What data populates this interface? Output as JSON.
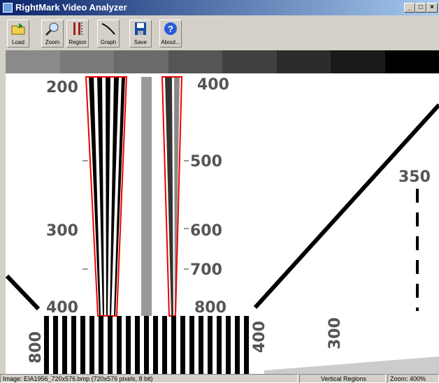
{
  "window": {
    "title": "RightMark Video Analyzer"
  },
  "toolbar": {
    "buttons": [
      "Load",
      "Zoom",
      "Region",
      "Graph",
      "Save",
      "About..."
    ]
  },
  "image": {
    "labels": [
      "200",
      "400",
      "500",
      "300",
      "600",
      "700",
      "400",
      "800",
      "350",
      "800",
      "400",
      "300"
    ]
  },
  "status": {
    "file": "Image: EIA1956_720x576.bmp (720x576 pixels, 8 bit)",
    "mode": "Vertical Regions",
    "zoom": "Zoom: 400%"
  }
}
